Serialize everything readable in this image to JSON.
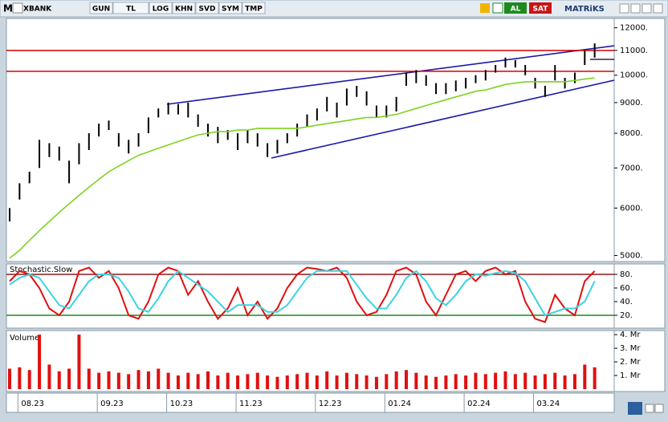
{
  "toolbar": {
    "logo": "M",
    "symbol": "XBANK",
    "buttons": [
      "GUN",
      "TL",
      "LOG",
      "KHN",
      "SVD",
      "SYM",
      "TMP"
    ],
    "buy": "AL",
    "sell": "SAT",
    "brand": "MATRiKS"
  },
  "chart_data": [
    {
      "type": "ohlc",
      "log": true,
      "categories": [
        null,
        "08.23",
        null,
        null,
        null,
        null,
        null,
        null,
        null,
        "09.23",
        null,
        null,
        null,
        null,
        null,
        null,
        "10.23",
        null,
        null,
        null,
        null,
        null,
        null,
        "11.23",
        null,
        null,
        null,
        null,
        null,
        null,
        null,
        "12.23",
        null,
        null,
        null,
        null,
        null,
        null,
        "01.24",
        null,
        null,
        null,
        null,
        null,
        null,
        null,
        "02.24",
        null,
        null,
        null,
        null,
        null,
        null,
        "03.24",
        null,
        null,
        null,
        null,
        null,
        null
      ],
      "series": [
        {
          "type": "bars",
          "color": "#000000",
          "high": [
            6000,
            6600,
            6900,
            7800,
            7700,
            7600,
            7200,
            7700,
            8000,
            8300,
            8400,
            8000,
            7800,
            8000,
            8500,
            8800,
            9000,
            8950,
            9000,
            8600,
            8300,
            8200,
            8100,
            8000,
            8100,
            8000,
            7700,
            7800,
            8000,
            8300,
            8600,
            8800,
            9200,
            9000,
            9500,
            9600,
            9400,
            8900,
            8900,
            9200,
            10100,
            10200,
            10000,
            9700,
            9700,
            9800,
            9900,
            10000,
            10200,
            10400,
            10700,
            10600,
            10400,
            9900,
            9600,
            10400,
            9900,
            10100,
            11000,
            11300
          ],
          "low": [
            5700,
            6200,
            6600,
            7000,
            7300,
            7200,
            6600,
            7100,
            7500,
            7900,
            8100,
            7600,
            7400,
            7600,
            8000,
            8500,
            8600,
            8600,
            8500,
            8200,
            7900,
            7700,
            7800,
            7500,
            7700,
            7600,
            7300,
            7400,
            7700,
            7900,
            8200,
            8400,
            8700,
            8500,
            8900,
            9200,
            8900,
            8500,
            8500,
            8700,
            9600,
            9700,
            9600,
            9300,
            9300,
            9400,
            9500,
            9700,
            9800,
            10100,
            10300,
            10300,
            10000,
            9500,
            9200,
            9800,
            9500,
            9700,
            10400,
            10700
          ]
        },
        {
          "type": "line",
          "color": "#7ed321",
          "values": [
            4950,
            5100,
            5300,
            5500,
            5700,
            5900,
            6100,
            6300,
            6500,
            6700,
            6900,
            7050,
            7200,
            7350,
            7450,
            7550,
            7650,
            7750,
            7850,
            7950,
            8000,
            8050,
            8050,
            8100,
            8100,
            8150,
            8150,
            8150,
            8150,
            8150,
            8200,
            8250,
            8300,
            8350,
            8400,
            8450,
            8500,
            8500,
            8550,
            8600,
            8700,
            8800,
            8900,
            9000,
            9100,
            9200,
            9300,
            9400,
            9450,
            9550,
            9650,
            9700,
            9750,
            9750,
            9750,
            9750,
            9750,
            9800,
            9850,
            9900
          ]
        }
      ],
      "hlines": [
        11000,
        10150
      ],
      "hline_color": "#d40000",
      "ylim": [
        4900,
        12400
      ],
      "yticks": [
        {
          "value": 12000,
          "label": "12000."
        },
        {
          "value": 11000,
          "label": "11000."
        },
        {
          "value": 10000,
          "label": "10000."
        },
        {
          "value": 9000,
          "label": "9000."
        },
        {
          "value": 8000,
          "label": "8000."
        },
        {
          "value": 7000,
          "label": "7000."
        },
        {
          "value": 6000,
          "label": "6000."
        },
        {
          "value": 5000,
          "label": "5000."
        }
      ]
    },
    {
      "type": "line",
      "title": "Stochastic.Slow",
      "series": [
        {
          "color": "#e01010",
          "values": [
            70,
            85,
            80,
            60,
            30,
            20,
            40,
            85,
            90,
            75,
            85,
            60,
            20,
            15,
            40,
            80,
            90,
            85,
            50,
            70,
            40,
            15,
            30,
            60,
            20,
            40,
            15,
            30,
            60,
            80,
            90,
            88,
            85,
            90,
            75,
            40,
            20,
            25,
            50,
            85,
            90,
            80,
            40,
            20,
            50,
            80,
            85,
            70,
            85,
            90,
            80,
            85,
            40,
            15,
            10,
            50,
            30,
            20,
            70,
            85
          ]
        },
        {
          "color": "#3cd3e0",
          "values": [
            65,
            75,
            80,
            75,
            55,
            35,
            30,
            50,
            70,
            80,
            80,
            75,
            55,
            30,
            25,
            45,
            70,
            85,
            75,
            65,
            55,
            40,
            25,
            35,
            35,
            35,
            25,
            25,
            35,
            55,
            75,
            85,
            85,
            85,
            85,
            65,
            45,
            30,
            30,
            50,
            75,
            85,
            70,
            45,
            35,
            50,
            70,
            80,
            78,
            82,
            85,
            82,
            70,
            45,
            20,
            25,
            30,
            30,
            40,
            70
          ]
        }
      ],
      "hlines": [
        80,
        20
      ],
      "hline_colors": [
        "#8b1a1a",
        "#1a8a1a"
      ],
      "ylim": [
        0,
        100
      ],
      "yticks": [
        {
          "value": 80,
          "label": "80."
        },
        {
          "value": 60,
          "label": "60."
        },
        {
          "value": 40,
          "label": "40."
        },
        {
          "value": 20,
          "label": "20."
        }
      ]
    },
    {
      "type": "bar",
      "title": "Volume",
      "color": "#e01010",
      "values": [
        1.5,
        1.6,
        1.4,
        4.0,
        1.8,
        1.3,
        1.5,
        4.0,
        1.5,
        1.2,
        1.3,
        1.2,
        1.1,
        1.4,
        1.3,
        1.5,
        1.2,
        1.0,
        1.2,
        1.1,
        1.3,
        1.0,
        1.2,
        1.0,
        1.1,
        1.2,
        1.0,
        0.9,
        1.0,
        1.1,
        1.2,
        1.0,
        1.3,
        1.0,
        1.2,
        1.1,
        1.0,
        0.9,
        1.1,
        1.3,
        1.4,
        1.2,
        1.0,
        0.9,
        1.0,
        1.1,
        1.0,
        1.2,
        1.1,
        1.2,
        1.3,
        1.1,
        1.2,
        1.0,
        1.1,
        1.2,
        1.0,
        1.1,
        1.8,
        1.6
      ],
      "ylim": [
        0,
        4.3
      ],
      "yticks": [
        {
          "value": 4,
          "label": "4. Mr"
        },
        {
          "value": 3,
          "label": "3. Mr"
        },
        {
          "value": 2,
          "label": "2. Mr"
        },
        {
          "value": 1,
          "label": "1. Mr"
        }
      ]
    }
  ]
}
